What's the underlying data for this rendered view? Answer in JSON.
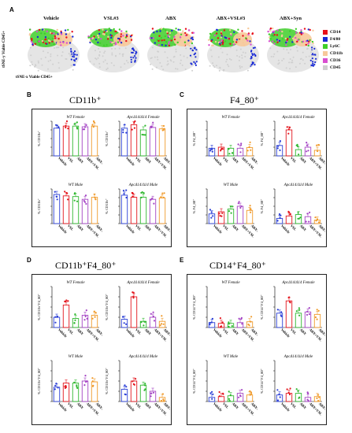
{
  "panel_letters": {
    "a": "A",
    "b": "B",
    "c": "C",
    "d": "D",
    "e": "E"
  },
  "tsne": {
    "titles": [
      "Vehicle",
      "VSL#3",
      "ABX",
      "ABX+VSL#3",
      "ABX+Syn"
    ],
    "y_label": "tSNE-y Viable CD45+",
    "x_label": "tSNE-x Viable CD45+",
    "legend": [
      {
        "label": "CD14",
        "color": "#e8101a"
      },
      {
        "label": "F4/80",
        "color": "#1a2bd6"
      },
      {
        "label": "Ly6C",
        "color": "#3fcf2a"
      },
      {
        "label": "CD11b",
        "color": "#f7c99a"
      },
      {
        "label": "CD36",
        "color": "#d94fd0"
      },
      {
        "label": "CD45",
        "color": "#cfcfcf"
      }
    ]
  },
  "sections": {
    "b": {
      "title": "CD11b⁺"
    },
    "c": {
      "title": "F4_80⁺"
    },
    "d": {
      "title": "CD11b⁺F4_80⁺"
    },
    "e": {
      "title": "CD14⁺F4_80⁺"
    }
  },
  "categories": [
    "Vehicle",
    "VSL",
    "ABX",
    "ABX+VSL",
    "ABX+Syn"
  ],
  "bar_colors": [
    "#2b3fd6",
    "#e3141c",
    "#2fb82f",
    "#a444c4",
    "#f09a2a"
  ],
  "chart_data": [
    {
      "type": "bar",
      "panel": "B",
      "title": "WT Female",
      "ylabel": "% CD11b⁺",
      "values": [
        0.8,
        0.86,
        0.86,
        0.84,
        0.86
      ],
      "ylim": [
        0,
        1
      ]
    },
    {
      "type": "bar",
      "panel": "B",
      "title": "ApcΔ14/Δ14 Female",
      "ylabel": "% CD11b⁺",
      "values": [
        0.8,
        0.9,
        0.75,
        0.82,
        0.78
      ],
      "ylim": [
        0,
        1
      ]
    },
    {
      "type": "bar",
      "panel": "B",
      "title": "WT Male",
      "ylabel": "% CD11b⁺",
      "values": [
        0.84,
        0.8,
        0.78,
        0.7,
        0.76
      ],
      "ylim": [
        0,
        1
      ]
    },
    {
      "type": "bar",
      "panel": "B",
      "title": "ApcΔ14/Δ14 Male",
      "ylabel": "% CD11b⁺",
      "values": [
        0.82,
        0.76,
        0.76,
        0.7,
        0.74
      ],
      "ylim": [
        0,
        1
      ]
    },
    {
      "type": "bar",
      "panel": "C",
      "title": "WT Female",
      "ylabel": "% F4_80⁺",
      "values": [
        0.22,
        0.25,
        0.22,
        0.22,
        0.24
      ],
      "ylim": [
        0,
        1
      ]
    },
    {
      "type": "bar",
      "panel": "C",
      "title": "ApcΔ14/Δ14 Female",
      "ylabel": "% F4_80⁺",
      "values": [
        0.3,
        0.75,
        0.18,
        0.25,
        0.16
      ],
      "ylim": [
        0,
        1
      ]
    },
    {
      "type": "bar",
      "panel": "C",
      "title": "WT Male",
      "ylabel": "% F4_80⁺",
      "values": [
        0.28,
        0.34,
        0.42,
        0.5,
        0.38
      ],
      "ylim": [
        0,
        1
      ]
    },
    {
      "type": "bar",
      "panel": "C",
      "title": "ApcΔ14/Δ14 Male",
      "ylabel": "% F4_80⁺",
      "values": [
        0.15,
        0.22,
        0.26,
        0.2,
        0.1
      ],
      "ylim": [
        0,
        1
      ]
    },
    {
      "type": "bar",
      "panel": "D",
      "title": "WT Female",
      "ylabel": "% CD11b⁺F4_80⁺",
      "values": [
        0.25,
        0.55,
        0.22,
        0.3,
        0.3
      ],
      "ylim": [
        0,
        1
      ]
    },
    {
      "type": "bar",
      "panel": "D",
      "title": "ApcΔ14/Δ14 Female",
      "ylabel": "% CD11b⁺F4_80⁺",
      "values": [
        0.2,
        0.75,
        0.15,
        0.25,
        0.15
      ],
      "ylim": [
        0,
        1
      ]
    },
    {
      "type": "bar",
      "panel": "D",
      "title": "WT Male",
      "ylabel": "% CD11b⁺F4_80⁺",
      "values": [
        0.35,
        0.45,
        0.45,
        0.5,
        0.48
      ],
      "ylim": [
        0,
        1
      ]
    },
    {
      "type": "bar",
      "panel": "D",
      "title": "ApcΔ14/Δ14 Male",
      "ylabel": "% CD11b⁺F4_80⁺",
      "values": [
        0.3,
        0.5,
        0.4,
        0.25,
        0.1
      ],
      "ylim": [
        0,
        1
      ]
    },
    {
      "type": "bar",
      "panel": "E",
      "title": "WT Female",
      "ylabel": "% CD14⁺F4_80⁺",
      "values": [
        0.12,
        0.1,
        0.1,
        0.12,
        0.14
      ],
      "ylim": [
        0,
        1
      ]
    },
    {
      "type": "bar",
      "panel": "E",
      "title": "ApcΔ14/Δ14 Female",
      "ylabel": "% CD14⁺F4_80⁺",
      "values": [
        0.35,
        0.65,
        0.35,
        0.38,
        0.32
      ],
      "ylim": [
        0,
        1
      ]
    },
    {
      "type": "bar",
      "panel": "E",
      "title": "WT Male",
      "ylabel": "% CD14⁺F4_80⁺",
      "values": [
        0.1,
        0.12,
        0.14,
        0.2,
        0.16
      ],
      "ylim": [
        0,
        1
      ]
    },
    {
      "type": "bar",
      "panel": "E",
      "title": "ApcΔ14/Δ14 Male",
      "ylabel": "% CD14⁺F4_80⁺",
      "values": [
        0.16,
        0.2,
        0.2,
        0.1,
        0.12
      ],
      "ylim": [
        0,
        1
      ]
    }
  ]
}
